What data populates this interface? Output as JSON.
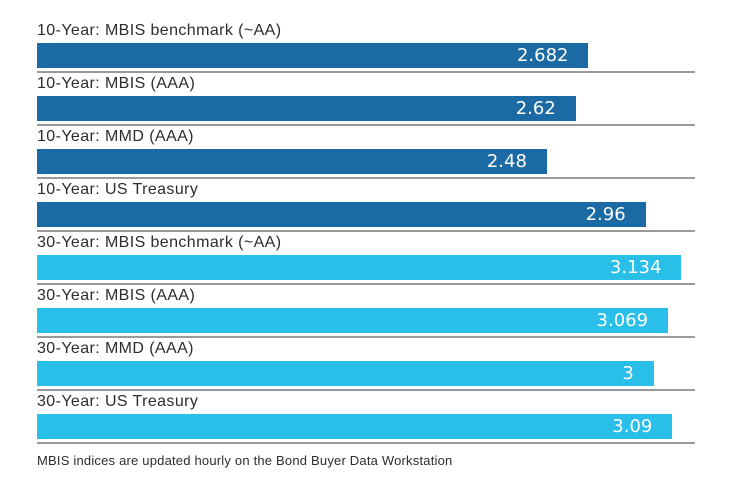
{
  "colors": {
    "bar_10_year": "#1c6aa3",
    "bar_30_year": "#29bfe8",
    "separator": "#999999",
    "label_text": "#2d2d2d",
    "value_text": "#ffffff",
    "background": "#ffffff"
  },
  "chart_data": {
    "type": "bar",
    "orientation": "horizontal",
    "title": "",
    "xlabel": "",
    "ylabel": "",
    "xlim": [
      0,
      3.2
    ],
    "grid": false,
    "legend": "none",
    "categories": [
      "10-Year: MBIS benchmark (~AA)",
      "10-Year: MBIS (AAA)",
      "10-Year: MMD (AAA)",
      "10-Year: US Treasury",
      "30-Year: MBIS benchmark (~AA)",
      "30-Year: MBIS (AAA)",
      "30-Year: MMD (AAA)",
      "30-Year: US Treasury"
    ],
    "values": [
      2.682,
      2.62,
      2.48,
      2.96,
      3.134,
      3.069,
      3,
      3.09
    ],
    "display_values": [
      "2.682",
      "2.62",
      "2.48",
      "2.96",
      "3.134",
      "3.069",
      "3",
      "3.09"
    ],
    "series_groups": [
      "10-year",
      "10-year",
      "10-year",
      "10-year",
      "30-year",
      "30-year",
      "30-year",
      "30-year"
    ]
  },
  "footer": {
    "note": "MBIS indices are updated hourly on the Bond Buyer Data Workstation"
  }
}
